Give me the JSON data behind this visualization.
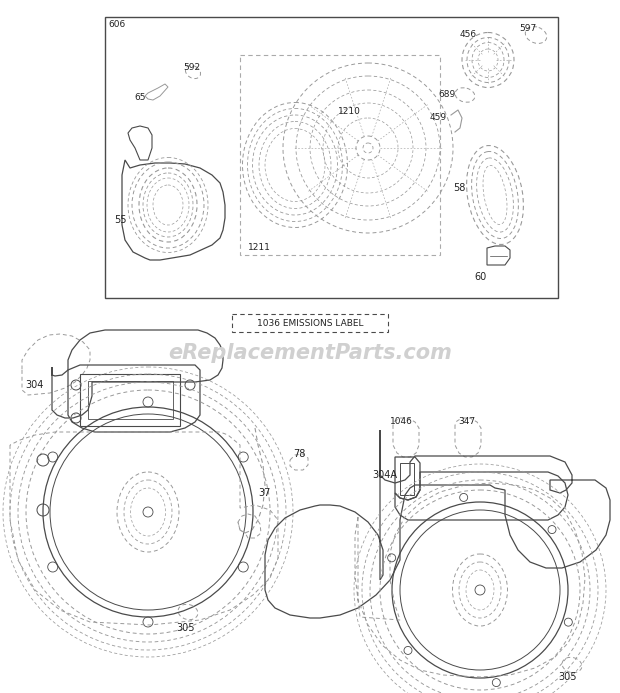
{
  "bg_color": "#ffffff",
  "line_color": "#4a4a4a",
  "dashed_color": "#999999",
  "text_color": "#222222",
  "watermark_color": "#d0d0d0",
  "watermark": "eReplacementParts.com",
  "emissions_label": "1036 EMISSIONS LABEL",
  "figsize": [
    6.2,
    6.93
  ],
  "dpi": 100
}
